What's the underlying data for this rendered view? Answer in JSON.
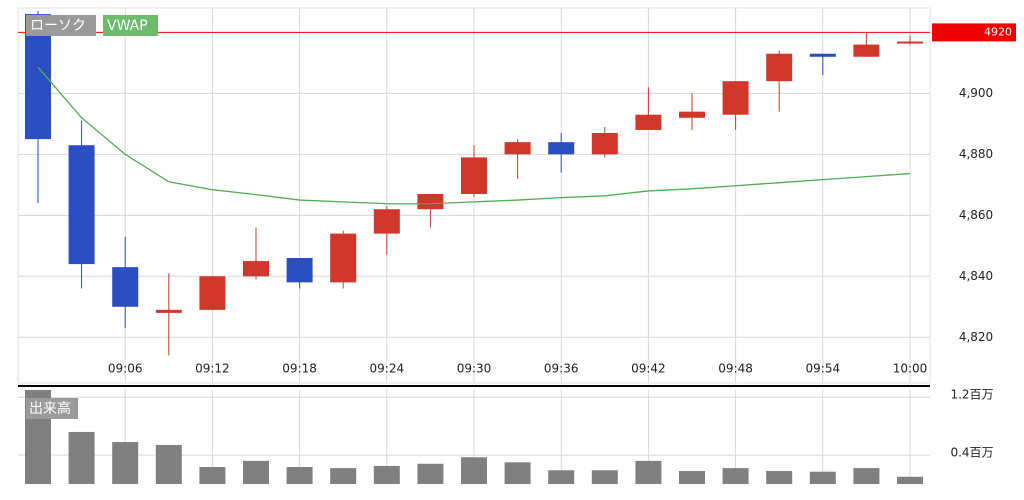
{
  "chart_data": {
    "type": "candlestick",
    "categories": [
      null,
      null,
      "09:06",
      null,
      "09:12",
      null,
      "09:18",
      null,
      "09:24",
      null,
      "09:30",
      null,
      "09:36",
      null,
      "09:42",
      null,
      "09:48",
      null,
      "09:54",
      null,
      "10:00"
    ],
    "candles": {
      "name": "ローソク",
      "up_color": "#d0372a",
      "down_color": "#2b4fc3",
      "open": [
        4926,
        4883,
        4843,
        4828,
        4829,
        4840,
        4846,
        4838,
        4854,
        4862,
        4867,
        4880,
        4884,
        4880,
        4888,
        4892,
        4893,
        4904,
        4913,
        4912,
        4917
      ],
      "high": [
        4927,
        4891,
        4853,
        4841,
        4840,
        4856,
        4846,
        4855,
        4863,
        4867,
        4883,
        4885,
        4887,
        4889,
        4902,
        4900,
        4904,
        4914,
        4913,
        4920,
        4919
      ],
      "low": [
        4864,
        4836,
        4823,
        4814,
        4829,
        4839,
        4836,
        4836,
        4847,
        4856,
        4866,
        4872,
        4874,
        4879,
        4888,
        4888,
        4888,
        4894,
        4906,
        4912,
        4916
      ],
      "close": [
        4885,
        4844,
        4830,
        4829,
        4840,
        4845,
        4838,
        4854,
        4862,
        4867,
        4879,
        4884,
        4880,
        4887,
        4893,
        4894,
        4904,
        4913,
        4912,
        4916,
        4917
      ]
    },
    "vwap": {
      "name": "VWAP",
      "color": "#4caf50",
      "values": [
        4908.6,
        4892,
        4880,
        4871,
        4868.4,
        4866.8,
        4865,
        4864.4,
        4863.8,
        4863.8,
        4864.4,
        4865,
        4865.8,
        4866.4,
        4868,
        4868.7,
        4869.7,
        4870.7,
        4871.7,
        4872.7,
        4873.7
      ]
    },
    "current_price": 4920,
    "current_color": "#ee0000",
    "ylim": [
      4805,
      4928
    ],
    "yticks": [
      {
        "value": 4820,
        "label": "4,820"
      },
      {
        "value": 4840,
        "label": "4,840"
      },
      {
        "value": 4860,
        "label": "4,860"
      },
      {
        "value": 4880,
        "label": "4,880"
      },
      {
        "value": 4900,
        "label": "4,900"
      }
    ],
    "grid": true,
    "volume": {
      "name": "出来高",
      "color": "#808080",
      "values": [
        1300000,
        720000,
        580000,
        540000,
        235000,
        320000,
        235000,
        220000,
        250000,
        280000,
        370000,
        300000,
        190000,
        190000,
        320000,
        180000,
        220000,
        180000,
        170000,
        220000,
        100000
      ],
      "ylim": [
        0,
        1300000
      ],
      "yticks": [
        {
          "value": 400000,
          "label": "0.4百万"
        },
        {
          "value": 1200000,
          "label": "1.2百万"
        }
      ]
    }
  }
}
